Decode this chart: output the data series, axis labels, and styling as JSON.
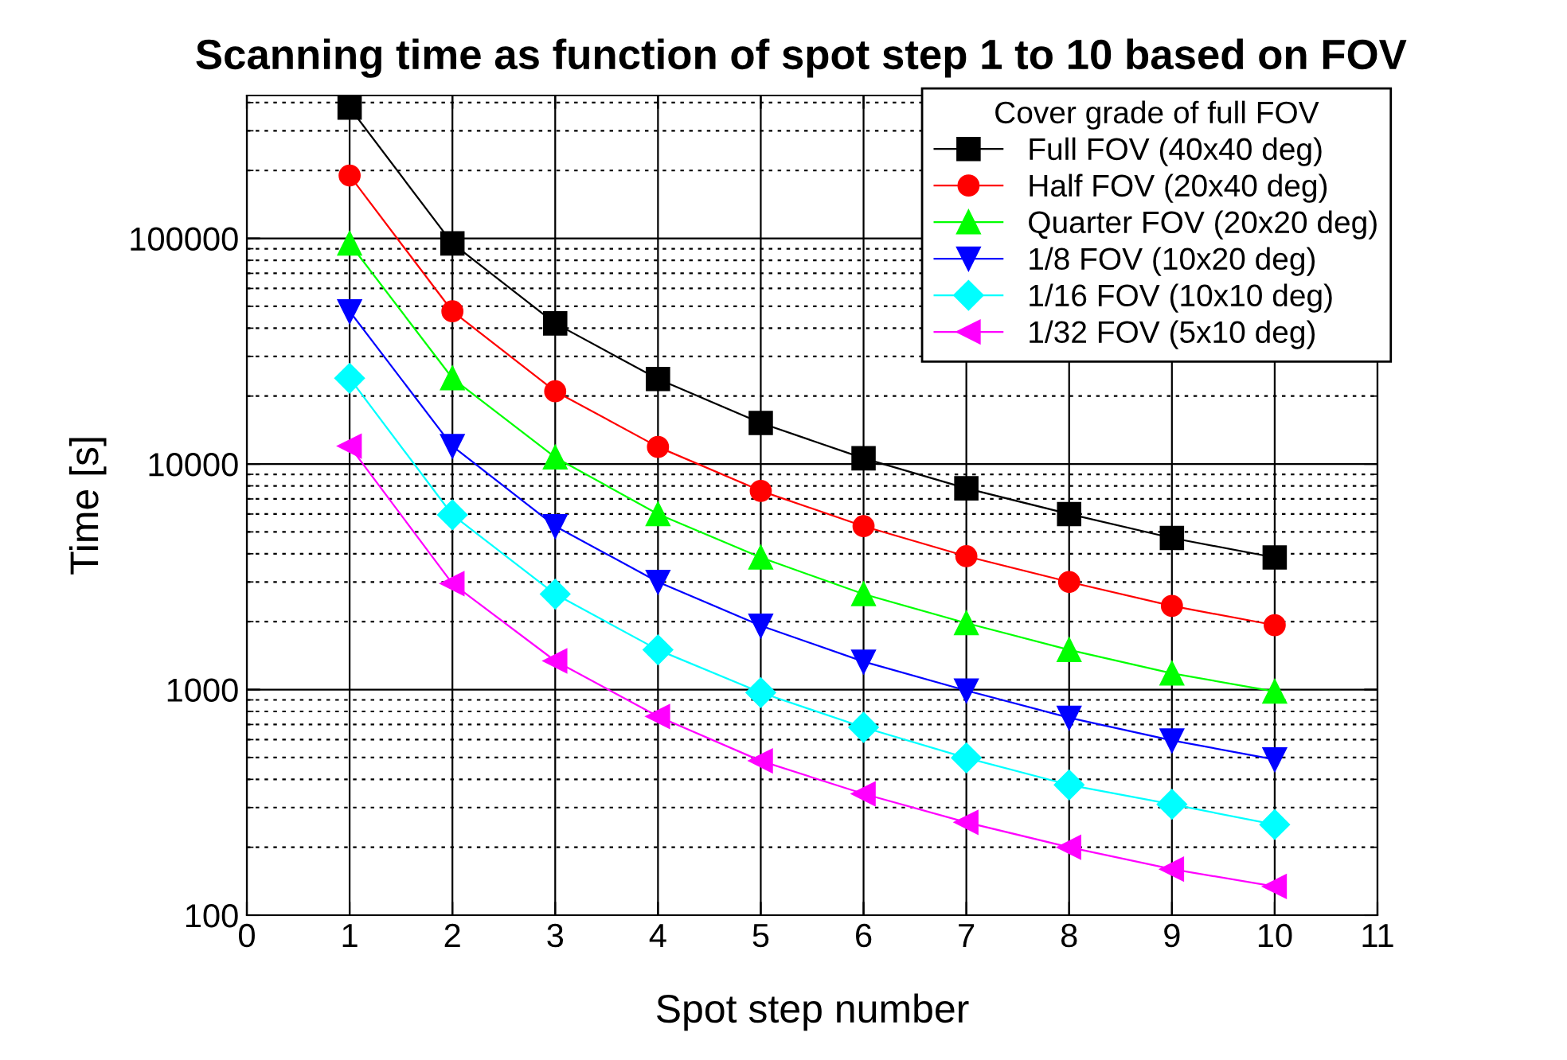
{
  "chart_data": {
    "type": "line",
    "title": "Scanning time as function of spot step 1 to 10 based on FOV",
    "xlabel": "Spot step number",
    "ylabel": "Time [s]",
    "legend_title": "Cover grade of full FOV",
    "x": [
      1,
      2,
      3,
      4,
      5,
      6,
      7,
      8,
      9,
      10
    ],
    "series": [
      {
        "name": "Full FOV (40x40 deg)",
        "color": "#000000",
        "marker": "square",
        "values": [
          380000,
          95000,
          42000,
          23800,
          15200,
          10600,
          7800,
          6000,
          4700,
          3850
        ]
      },
      {
        "name": "Half FOV (20x40 deg)",
        "color": "#ff0000",
        "marker": "circle",
        "values": [
          190000,
          47500,
          21000,
          11900,
          7600,
          5300,
          3900,
          3000,
          2350,
          1930
        ]
      },
      {
        "name": "Quarter FOV (20x20 deg)",
        "color": "#00ff00",
        "marker": "triangle",
        "values": [
          95000,
          24000,
          10700,
          6000,
          3850,
          2650,
          1970,
          1500,
          1180,
          980
        ]
      },
      {
        "name": "1/8 FOV (10x20 deg)",
        "color": "#0000ff",
        "marker": "triangle_down",
        "values": [
          47500,
          12000,
          5300,
          3000,
          1920,
          1330,
          990,
          750,
          595,
          490
        ]
      },
      {
        "name": "1/16 FOV (10x10 deg)",
        "color": "#00ffff",
        "marker": "diamond",
        "values": [
          24000,
          5950,
          2650,
          1500,
          970,
          680,
          498,
          378,
          310,
          252
        ]
      },
      {
        "name": "1/32 FOV (5x10 deg)",
        "color": "#ff00ff",
        "marker": "triangle_left",
        "values": [
          12000,
          2950,
          1340,
          760,
          483,
          345,
          258,
          200,
          160,
          134
        ]
      }
    ],
    "log": "y",
    "xlim": [
      0,
      11
    ],
    "xticks": [
      0,
      1,
      2,
      3,
      4,
      5,
      6,
      7,
      8,
      9,
      10,
      11
    ],
    "ylim": [
      100,
      430000
    ],
    "yticks": [
      100,
      1000,
      10000,
      100000
    ],
    "grid": true,
    "legend": "top right",
    "line_style": "solid"
  }
}
